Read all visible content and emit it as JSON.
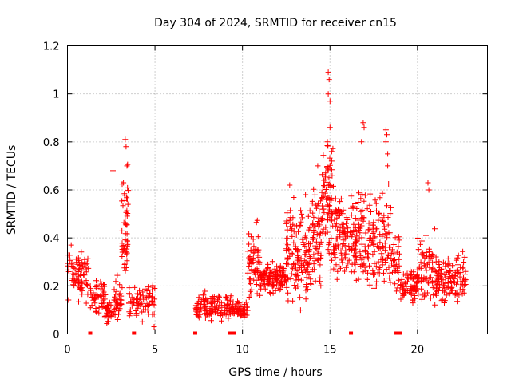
{
  "chart_data": {
    "type": "scatter",
    "title": "Day 304 of 2024, SRMTID for receiver cn15",
    "xlabel": "GPS time / hours",
    "ylabel": "SRMTID / TECUs",
    "xlim": [
      0,
      24
    ],
    "ylim": [
      0,
      1.2
    ],
    "x_ticks": [
      0,
      5,
      10,
      15,
      20
    ],
    "x_tick_labels": [
      "0",
      "5",
      "10",
      "15",
      "20"
    ],
    "y_ticks": [
      0,
      0.2,
      0.4,
      0.6,
      0.8,
      1.0,
      1.2
    ],
    "y_tick_labels": [
      "0",
      "0.2",
      "0.4",
      "0.6",
      "0.8",
      "1",
      "1.2"
    ],
    "grid": true,
    "marker": "+",
    "color": "#ff0000",
    "data_gaps_at_zero_hours": [
      1.3,
      3.8,
      7.3,
      9.3,
      9.5,
      16.2,
      18.8,
      19.0
    ],
    "segments": [
      {
        "x_start": 0.0,
        "x_end": 1.2,
        "base": 0.25,
        "spread": 0.08,
        "n": 80
      },
      {
        "x_start": 1.3,
        "x_end": 2.2,
        "base": 0.17,
        "spread": 0.05,
        "n": 50
      },
      {
        "x_start": 2.1,
        "x_end": 2.5,
        "base": 0.09,
        "spread": 0.03,
        "n": 30
      },
      {
        "x_start": 2.5,
        "x_end": 3.1,
        "base": 0.15,
        "spread": 0.06,
        "n": 40
      },
      {
        "x_start": 3.1,
        "x_end": 3.5,
        "base": 0.4,
        "spread": 0.2,
        "n": 50
      },
      {
        "x_start": 3.5,
        "x_end": 5.0,
        "base": 0.13,
        "spread": 0.05,
        "n": 80
      },
      {
        "x_start": 7.3,
        "x_end": 9.5,
        "base": 0.11,
        "spread": 0.04,
        "n": 130
      },
      {
        "x_start": 9.5,
        "x_end": 10.3,
        "base": 0.1,
        "spread": 0.03,
        "n": 50
      },
      {
        "x_start": 10.3,
        "x_end": 11.0,
        "base": 0.3,
        "spread": 0.1,
        "n": 60
      },
      {
        "x_start": 11.0,
        "x_end": 12.5,
        "base": 0.23,
        "spread": 0.04,
        "n": 130
      },
      {
        "x_start": 12.5,
        "x_end": 14.0,
        "base": 0.33,
        "spread": 0.14,
        "n": 140
      },
      {
        "x_start": 14.0,
        "x_end": 14.5,
        "base": 0.4,
        "spread": 0.15,
        "n": 60
      },
      {
        "x_start": 14.5,
        "x_end": 15.2,
        "base": 0.55,
        "spread": 0.18,
        "n": 80
      },
      {
        "x_start": 15.2,
        "x_end": 16.5,
        "base": 0.38,
        "spread": 0.13,
        "n": 120
      },
      {
        "x_start": 16.5,
        "x_end": 18.5,
        "base": 0.38,
        "spread": 0.15,
        "n": 160
      },
      {
        "x_start": 18.5,
        "x_end": 19.0,
        "base": 0.3,
        "spread": 0.1,
        "n": 30
      },
      {
        "x_start": 19.0,
        "x_end": 20.0,
        "base": 0.2,
        "spread": 0.05,
        "n": 70
      },
      {
        "x_start": 20.0,
        "x_end": 21.0,
        "base": 0.28,
        "spread": 0.1,
        "n": 70
      },
      {
        "x_start": 21.0,
        "x_end": 22.8,
        "base": 0.23,
        "spread": 0.07,
        "n": 130
      }
    ],
    "spikes": [
      {
        "x": 2.6,
        "y": 0.68
      },
      {
        "x": 3.3,
        "y": 0.81
      },
      {
        "x": 3.35,
        "y": 0.78
      },
      {
        "x": 3.4,
        "y": 0.7
      },
      {
        "x": 3.2,
        "y": 0.63
      },
      {
        "x": 14.9,
        "y": 1.09
      },
      {
        "x": 14.95,
        "y": 1.06
      },
      {
        "x": 14.9,
        "y": 1.0
      },
      {
        "x": 15.0,
        "y": 0.97
      },
      {
        "x": 15.0,
        "y": 0.86
      },
      {
        "x": 14.85,
        "y": 0.8
      },
      {
        "x": 15.1,
        "y": 0.76
      },
      {
        "x": 15.1,
        "y": 0.72
      },
      {
        "x": 16.9,
        "y": 0.88
      },
      {
        "x": 16.95,
        "y": 0.86
      },
      {
        "x": 16.8,
        "y": 0.8
      },
      {
        "x": 18.2,
        "y": 0.85
      },
      {
        "x": 18.25,
        "y": 0.83
      },
      {
        "x": 18.2,
        "y": 0.8
      },
      {
        "x": 18.3,
        "y": 0.75
      },
      {
        "x": 18.3,
        "y": 0.7
      },
      {
        "x": 20.6,
        "y": 0.63
      },
      {
        "x": 20.65,
        "y": 0.6
      },
      {
        "x": 4.95,
        "y": 0.03
      },
      {
        "x": 12.7,
        "y": 0.62
      },
      {
        "x": 13.6,
        "y": 0.58
      },
      {
        "x": 14.3,
        "y": 0.7
      }
    ]
  }
}
